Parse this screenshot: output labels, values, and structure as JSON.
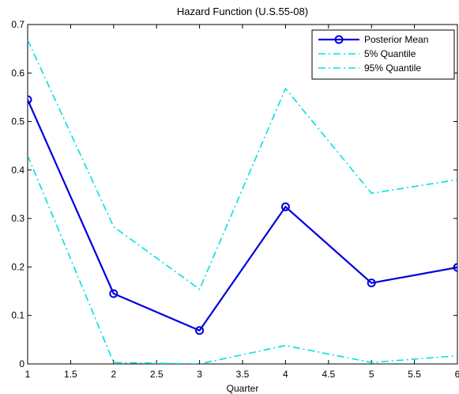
{
  "chart_data": {
    "type": "line",
    "title": "Hazard Function (U.S.55-08)",
    "xlabel": "Quarter",
    "ylabel": "",
    "xlim": [
      1,
      6
    ],
    "ylim": [
      0,
      0.7
    ],
    "xticks": [
      "1",
      "1.5",
      "2",
      "2.5",
      "3",
      "3.5",
      "4",
      "4.5",
      "5",
      "5.5",
      "6"
    ],
    "yticks": [
      "0",
      "0.1",
      "0.2",
      "0.3",
      "0.4",
      "0.5",
      "0.6",
      "0.7"
    ],
    "x": [
      1,
      2,
      3,
      4,
      5,
      6
    ],
    "series": [
      {
        "name": "Posterior Mean",
        "values": [
          0.545,
          0.145,
          0.069,
          0.324,
          0.167,
          0.199
        ],
        "color": "#0000dd",
        "style": "solid",
        "marker": "circle"
      },
      {
        "name": "5% Quantile",
        "values": [
          0.43,
          0.003,
          0.0,
          0.038,
          0.003,
          0.017
        ],
        "color": "#00e0e0",
        "style": "dashdot",
        "marker": "none"
      },
      {
        "name": "95% Quantile",
        "values": [
          0.668,
          0.283,
          0.154,
          0.568,
          0.352,
          0.38
        ],
        "color": "#00e0e0",
        "style": "dashdot",
        "marker": "none"
      }
    ],
    "grid": false,
    "legend_position": "top-right"
  }
}
